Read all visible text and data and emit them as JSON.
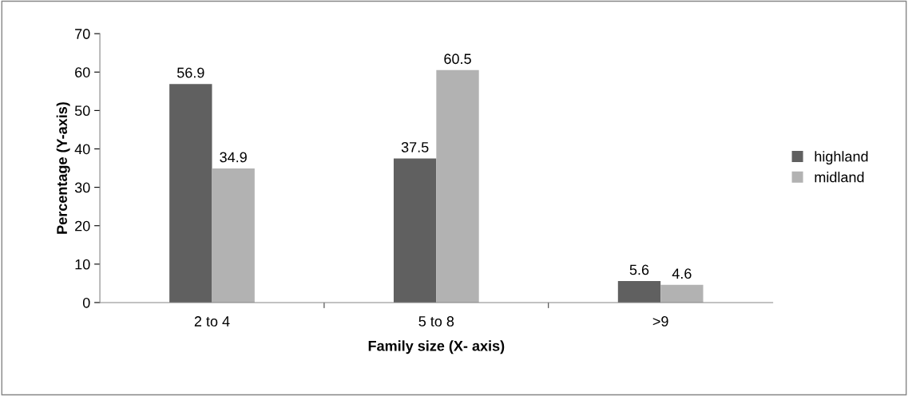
{
  "chart_data": {
    "type": "bar",
    "xlabel": "Family size (X- axis)",
    "ylabel": "Percentage (Y-axis)",
    "categories": [
      "2 to 4",
      "5 to 8",
      ">9"
    ],
    "series": [
      {
        "name": "highland",
        "color": "#606060",
        "values": [
          56.9,
          37.5,
          5.6
        ]
      },
      {
        "name": "midland",
        "color": "#b2b2b2",
        "values": [
          34.9,
          60.5,
          4.6
        ]
      }
    ],
    "ylim": [
      0,
      70
    ],
    "yticks": [
      0,
      10,
      20,
      30,
      40,
      50,
      60,
      70
    ],
    "grid": false,
    "legend": "right",
    "data_labels": true
  }
}
